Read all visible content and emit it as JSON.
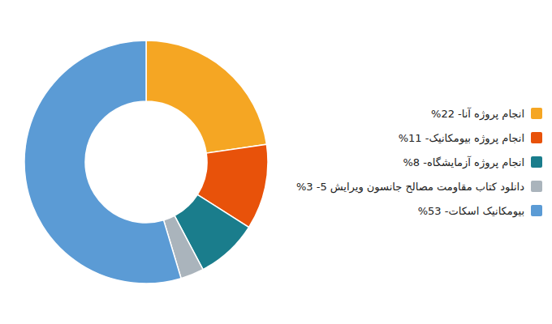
{
  "chart_data": {
    "type": "donut",
    "categories": [
      "انجام پروژه آنا- 22%",
      "انجام پروژه بیومکانیک- 11%",
      "انجام پروژه آزمایشگاه- 8%",
      "دانلود کتاب مقاومت مصالح جانسون ویرایش 5- 3%",
      "بیومکانیک اسکات- 53%"
    ],
    "values": [
      22,
      11,
      8,
      3,
      53
    ],
    "colors": [
      "#f5a623",
      "#e8520a",
      "#1a7d8c",
      "#aab4bc",
      "#5b9bd5"
    ],
    "legend": "right"
  }
}
